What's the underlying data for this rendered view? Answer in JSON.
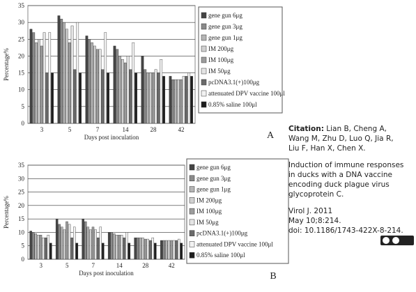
{
  "chart_data": [
    {
      "type": "bar",
      "panel": "A",
      "xlabel": "Days post inoculation",
      "ylabel": "Percentage%",
      "categories": [
        "3",
        "5",
        "7",
        "14",
        "28",
        "42"
      ],
      "ylim": [
        0,
        35
      ],
      "yticks": [
        0,
        5,
        10,
        15,
        20,
        25,
        30,
        35
      ],
      "grid": true,
      "series": [
        {
          "name": "gene gun 6μg",
          "color": "#444444",
          "values": [
            28,
            32,
            26,
            23,
            20,
            14
          ]
        },
        {
          "name": "gene gun 3μg",
          "color": "#8a8a8a",
          "values": [
            27,
            31,
            25,
            22,
            16,
            13
          ]
        },
        {
          "name": "gene gun 1μg",
          "color": "#b5b5b5",
          "values": [
            24,
            30,
            24,
            20,
            15,
            13
          ]
        },
        {
          "name": "IM 200μg",
          "color": "#d0d0d0",
          "values": [
            25,
            28,
            23,
            19,
            15,
            13
          ]
        },
        {
          "name": "IM 100μg",
          "color": "#9c9c9c",
          "values": [
            23,
            24,
            22,
            18,
            15,
            13
          ]
        },
        {
          "name": "IM 50μg",
          "color": "#e4e4e4",
          "values": [
            27,
            29,
            22,
            20,
            16,
            14
          ]
        },
        {
          "name": "pcDNA3.1(+)100μg",
          "color": "#6a6a6a",
          "values": [
            15,
            16,
            16,
            16,
            15,
            14
          ]
        },
        {
          "name": "attenuated DPV vaccine 100μl",
          "color": "#f2f2f2",
          "values": [
            27,
            30,
            27,
            24,
            19,
            15
          ]
        },
        {
          "name": "0.85% saline 100μl",
          "color": "#1e1e1e",
          "values": [
            15,
            15,
            15,
            15,
            14,
            14
          ]
        }
      ]
    },
    {
      "type": "bar",
      "panel": "B",
      "xlabel": "Days post inoculation",
      "ylabel": "Percentage%",
      "categories": [
        "3",
        "5",
        "7",
        "14",
        "28",
        "42"
      ],
      "ylim": [
        0,
        35
      ],
      "yticks": [
        0,
        5,
        10,
        15,
        20,
        25,
        30,
        35
      ],
      "grid": true,
      "series": [
        {
          "name": "gene gun 6μg",
          "color": "#444444",
          "values": [
            10.5,
            15,
            15,
            10,
            8,
            7
          ]
        },
        {
          "name": "gene gun 3μg",
          "color": "#8a8a8a",
          "values": [
            10,
            13,
            14,
            10,
            8,
            7
          ]
        },
        {
          "name": "gene gun 1μg",
          "color": "#b5b5b5",
          "values": [
            9.5,
            12,
            12,
            9.5,
            8,
            7
          ]
        },
        {
          "name": "IM 200μg",
          "color": "#d0d0d0",
          "values": [
            9,
            11,
            11,
            9,
            8,
            7
          ]
        },
        {
          "name": "IM 100μg",
          "color": "#9c9c9c",
          "values": [
            9,
            14,
            12,
            9,
            7.5,
            7
          ]
        },
        {
          "name": "IM 50μg",
          "color": "#e4e4e4",
          "values": [
            8,
            13,
            11,
            9,
            7.5,
            7
          ]
        },
        {
          "name": "pcDNA3.1(+)100μg",
          "color": "#6a6a6a",
          "values": [
            8,
            8,
            8,
            8,
            7,
            7
          ]
        },
        {
          "name": "attenuated DPV vaccine 100μl",
          "color": "#f2f2f2",
          "values": [
            9,
            12,
            12,
            10,
            8,
            7.5
          ]
        },
        {
          "name": "0.85% saline 100μl",
          "color": "#1e1e1e",
          "values": [
            6,
            6,
            6,
            6,
            6,
            6
          ]
        }
      ]
    }
  ],
  "citation": {
    "label": "Citation:",
    "authors": [
      "Lian B, Cheng A,",
      "Wang M, Zhu D, Luo Q, Jia R,",
      "Liu F, Han X, Chen X."
    ],
    "title": [
      "Induction of immune responses",
      "in ducks with a DNA vaccine",
      "encoding duck plague virus",
      "glycoprotein C."
    ],
    "source": [
      "Virol J. 2011",
      "May 10;8:214.",
      "doi: 10.1186/1743-422X-8-214."
    ]
  }
}
